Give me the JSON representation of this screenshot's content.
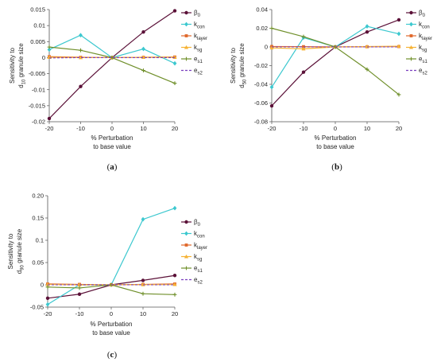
{
  "colors": {
    "beta0": "#5b1138",
    "kcon": "#3cc8cf",
    "klayer": "#e0682a",
    "ksg": "#f6b234",
    "es1": "#6f8f2a",
    "es2": "#7a3fbf"
  },
  "chart_data": [
    {
      "type": "line",
      "panel": "(a)",
      "panel_letter": "a",
      "ylabel_line1": "Sensitivity to",
      "ylabel_line2_pre": "d",
      "ylabel_line2_sub": "10",
      "ylabel_line2_post": " granule size",
      "xlabel_line1": "% Perturbation",
      "xlabel_line2": "to base value",
      "x": [
        -20,
        -10,
        0,
        10,
        20
      ],
      "xlim": [
        -20,
        20
      ],
      "ylim": [
        -0.02,
        0.015
      ],
      "yticks": [
        0.015,
        0.01,
        0.005,
        0,
        -0.005,
        -0.01,
        -0.015,
        -0.02
      ],
      "ytick_labels": [
        "0.015",
        "0.01",
        "0.005",
        "0",
        "-0.005",
        "-0.01",
        "-0.015",
        "-0.02"
      ],
      "xtick_labels": [
        "-20",
        "-10",
        "0",
        "10",
        "20"
      ],
      "series": [
        {
          "key": "beta0",
          "values": [
            -0.019,
            -0.009,
            0,
            0.008,
            0.0146
          ]
        },
        {
          "key": "kcon",
          "values": [
            0.0025,
            0.007,
            0,
            0.0027,
            -0.0018
          ]
        },
        {
          "key": "klayer",
          "values": [
            0.0003,
            0.0001,
            0,
            0.0001,
            0.0002
          ]
        },
        {
          "key": "ksg",
          "values": [
            0.0001,
            0.0,
            0,
            0.0001,
            0.0001
          ]
        },
        {
          "key": "es1",
          "values": [
            0.0033,
            0.0023,
            0,
            -0.004,
            -0.008
          ]
        },
        {
          "key": "es2",
          "values": [
            -0.0001,
            0.0,
            0,
            0.0,
            0.0
          ]
        }
      ]
    },
    {
      "type": "line",
      "panel": "(b)",
      "panel_letter": "b",
      "ylabel_line1": "Sensitivity to",
      "ylabel_line2_pre": "d",
      "ylabel_line2_sub": "50",
      "ylabel_line2_post": " granule size",
      "xlabel_line1": "% Perturbation",
      "xlabel_line2": "to base value",
      "x": [
        -20,
        -10,
        0,
        10,
        20
      ],
      "xlim": [
        -20,
        20
      ],
      "ylim": [
        -0.08,
        0.04
      ],
      "yticks": [
        0.04,
        0.02,
        0,
        -0.02,
        -0.04,
        -0.06,
        -0.08
      ],
      "ytick_labels": [
        "0.04",
        "0.02",
        "0",
        "-0.02",
        "-0.04",
        "-0.06",
        "-0.08"
      ],
      "xtick_labels": [
        "-20",
        "-10",
        "0",
        "10",
        "20"
      ],
      "series": [
        {
          "key": "beta0",
          "values": [
            -0.063,
            -0.027,
            0,
            0.016,
            0.029
          ]
        },
        {
          "key": "kcon",
          "values": [
            -0.043,
            0.01,
            0,
            0.022,
            0.014
          ]
        },
        {
          "key": "klayer",
          "values": [
            0.0005,
            0.0003,
            0,
            0.0002,
            0.0004
          ]
        },
        {
          "key": "ksg",
          "values": [
            -0.001,
            -0.002,
            0,
            0.0005,
            0.0008
          ]
        },
        {
          "key": "es1",
          "values": [
            0.02,
            0.011,
            0,
            -0.024,
            -0.051
          ]
        },
        {
          "key": "es2",
          "values": [
            0.0,
            0.0,
            0,
            0.0,
            0.0
          ]
        }
      ]
    },
    {
      "type": "line",
      "panel": "(c)",
      "panel_letter": "c",
      "ylabel_line1": "Sensitivity to",
      "ylabel_line2_pre": "d",
      "ylabel_line2_sub": "90",
      "ylabel_line2_post": " granule size",
      "xlabel_line1": "% Perturbation",
      "xlabel_line2": "to base value",
      "x": [
        -20,
        -10,
        0,
        10,
        20
      ],
      "xlim": [
        -20,
        20
      ],
      "ylim": [
        -0.05,
        0.2
      ],
      "yticks": [
        0.2,
        0.15,
        0.1,
        0.05,
        0,
        -0.05
      ],
      "ytick_labels": [
        "0.20",
        "0.15",
        "0.1",
        "0.05",
        "0",
        "-0.05"
      ],
      "xtick_labels": [
        "-20",
        "-10",
        "0",
        "10",
        "20"
      ],
      "series": [
        {
          "key": "beta0",
          "values": [
            -0.03,
            -0.021,
            0,
            0.01,
            0.021
          ]
        },
        {
          "key": "kcon",
          "values": [
            -0.044,
            0.0,
            0,
            0.147,
            0.172
          ]
        },
        {
          "key": "klayer",
          "values": [
            0.002,
            0.001,
            0,
            0.001,
            0.002
          ]
        },
        {
          "key": "ksg",
          "values": [
            0.001,
            0.0,
            0,
            0.0005,
            0.0008
          ]
        },
        {
          "key": "es1",
          "values": [
            -0.005,
            -0.007,
            0,
            -0.02,
            -0.022
          ]
        },
        {
          "key": "es2",
          "values": [
            0.0,
            0.0,
            0,
            0.0,
            0.0
          ]
        }
      ]
    }
  ],
  "legend": [
    {
      "key": "beta0",
      "base": "β",
      "sub": "0",
      "marker": "circle"
    },
    {
      "key": "kcon",
      "base": "k",
      "sub": "con",
      "marker": "diamond"
    },
    {
      "key": "klayer",
      "base": "k",
      "sub": "layer",
      "marker": "square"
    },
    {
      "key": "ksg",
      "base": "k",
      "sub": "sg",
      "marker": "triangle"
    },
    {
      "key": "es1",
      "base": "e",
      "sub": "s1",
      "marker": "plus"
    },
    {
      "key": "es2",
      "base": "e",
      "sub": "s2",
      "marker": "none"
    }
  ]
}
